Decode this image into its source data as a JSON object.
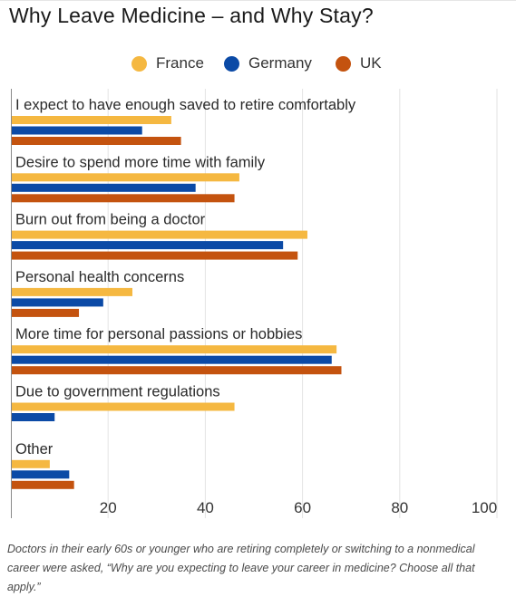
{
  "chart_data": {
    "type": "bar",
    "orientation": "horizontal",
    "title": "Why Leave Medicine – and Why Stay?",
    "categories": [
      "I expect to have enough saved to retire comfortably",
      "Desire to spend more time with family",
      "Burn out from being a doctor",
      "Personal health concerns",
      "More time for personal passions or hobbies",
      "Due to government regulations",
      "Other"
    ],
    "series": [
      {
        "name": "France",
        "color": "#f5b841",
        "values": [
          33,
          47,
          61,
          25,
          67,
          46,
          8
        ]
      },
      {
        "name": "Germany",
        "color": "#0b4aa6",
        "values": [
          27,
          38,
          56,
          19,
          66,
          9,
          12
        ]
      },
      {
        "name": "UK",
        "color": "#c4530f",
        "values": [
          35,
          46,
          59,
          14,
          68,
          null,
          13
        ]
      }
    ],
    "xlim": [
      0,
      100
    ],
    "xticks": [
      "20",
      "40",
      "60",
      "80",
      "100"
    ],
    "legend_position": "top",
    "grid": "vertical"
  },
  "caption": "Doctors in their early 60s or younger who are retiring completely or switching to a nonmedical career were asked, “Why are you expecting to leave your career in medicine? Choose all that apply.”"
}
